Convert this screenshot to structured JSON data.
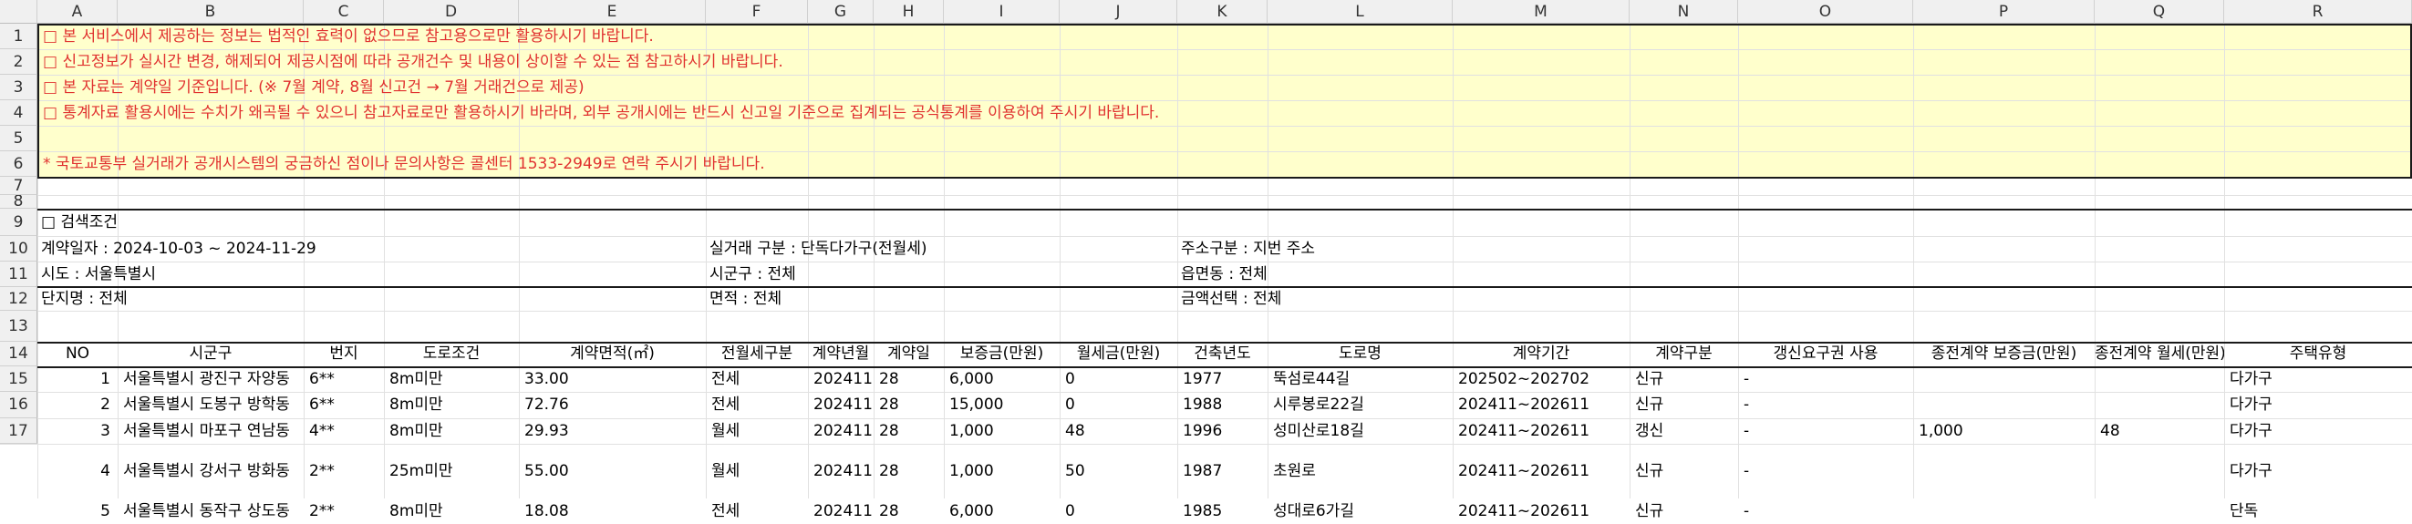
{
  "column_letters": [
    "A",
    "B",
    "C",
    "D",
    "E",
    "F",
    "G",
    "H",
    "I",
    "J",
    "K",
    "L",
    "M",
    "N",
    "O",
    "P",
    "Q",
    "R"
  ],
  "row_numbers": [
    "1",
    "2",
    "3",
    "4",
    "5",
    "6",
    "7",
    "8",
    "9",
    "10",
    "11",
    "12",
    "13",
    "14",
    "15",
    "16",
    "17"
  ],
  "notices": [
    "□ 본 서비스에서 제공하는 정보는 법적인 효력이 없으므로 참고용으로만 활용하시기 바랍니다.",
    "□ 신고정보가 실시간 변경, 해제되어 제공시점에 따라 공개건수 및 내용이 상이할 수 있는 점 참고하시기 바랍니다.",
    "□ 본 자료는 계약일 기준입니다. (※ 7월 계약, 8월 신고건 → 7월 거래건으로  제공)",
    "□ 통계자료 활용시에는 수치가 왜곡될 수 있으니 참고자료로만 활용하시기  바라며,  외부 공개시에는 반드시 신고일 기준으로 집계되는 공식통계를 이용하여 주시기 바랍니다.",
    "",
    "* 국토교통부 실거래가 공개시스템의 궁금하신 점이나 문의사항은 콜센터 1533-2949로 연락 주시기 바랍니다."
  ],
  "conditions": {
    "title": "□ 검색조건",
    "contract_date": "계약일자 : 2024-10-03 ~ 2024-11-29",
    "trade_type": "실거래 구분 : 단독다가구(전월세)",
    "address_type": "주소구분 : 지번 주소",
    "sido": "시도 : 서울특별시",
    "sigungu": "시군구 : 전체",
    "eupmyeondong": "읍면동 : 전체",
    "complex": "단지명 : 전체",
    "area": "면적 : 전체",
    "amount": "금액선택 : 전체"
  },
  "table": {
    "headers": [
      "NO",
      "시군구",
      "번지",
      "도로조건",
      "계약면적(㎡)",
      "전월세구분",
      "계약년월",
      "계약일",
      "보증금(만원)",
      "월세금(만원)",
      "건축년도",
      "도로명",
      "계약기간",
      "계약구분",
      "갱신요구권 사용",
      "종전계약 보증금(만원)",
      "종전계약 월세(만원)",
      "주택유형"
    ],
    "rows": [
      [
        "1",
        "서울특별시 광진구 자양동",
        "6**",
        "8m미만",
        "33.00",
        "전세",
        "202411",
        "28",
        "6,000",
        "0",
        "1977",
        "뚝섬로44길",
        "202502~202702",
        "신규",
        "-",
        "",
        "",
        "다가구"
      ],
      [
        "2",
        "서울특별시 도봉구 방학동",
        "6**",
        "8m미만",
        "72.76",
        "전세",
        "202411",
        "28",
        "15,000",
        "0",
        "1988",
        "시루봉로22길",
        "202411~202611",
        "신규",
        "-",
        "",
        "",
        "다가구"
      ],
      [
        "3",
        "서울특별시 마포구 연남동",
        "4**",
        "8m미만",
        "29.93",
        "월세",
        "202411",
        "28",
        "1,000",
        "48",
        "1996",
        "성미산로18길",
        "202411~202611",
        "갱신",
        "-",
        "1,000",
        "48",
        "다가구"
      ],
      [
        "4",
        "서울특별시 강서구 방화동",
        "2**",
        "25m미만",
        "55.00",
        "월세",
        "202411",
        "28",
        "1,000",
        "50",
        "1987",
        "초원로",
        "202411~202611",
        "신규",
        "-",
        "",
        "",
        "다가구"
      ],
      [
        "5",
        "서울특별시 동작구 상도동",
        "2**",
        "8m미만",
        "18.08",
        "전세",
        "202411",
        "28",
        "6,000",
        "0",
        "1985",
        "성대로6가길",
        "202411~202611",
        "신규",
        "-",
        "",
        "",
        "단독"
      ]
    ]
  }
}
